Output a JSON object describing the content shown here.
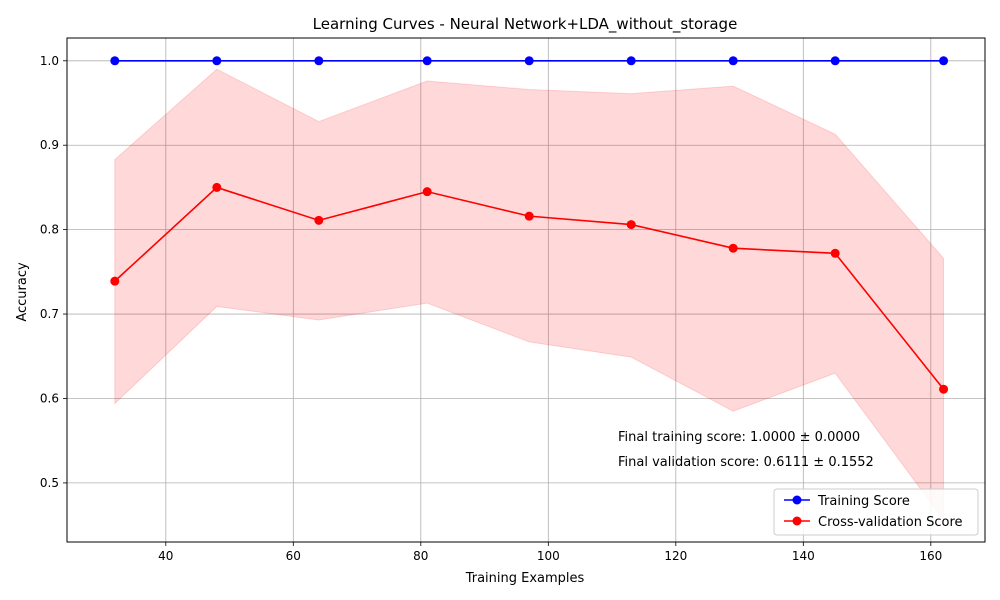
{
  "chart_data": {
    "type": "line",
    "title": "Learning Curves - Neural Network+LDA_without_storage",
    "xlabel": "Training Examples",
    "ylabel": "Accuracy",
    "x": [
      32,
      48,
      64,
      81,
      97,
      113,
      129,
      145,
      162
    ],
    "series": [
      {
        "name": "Training Score",
        "color": "#0000ff",
        "values": [
          1.0,
          1.0,
          1.0,
          1.0,
          1.0,
          1.0,
          1.0,
          1.0,
          1.0
        ],
        "band_lower": [
          1.0,
          1.0,
          1.0,
          1.0,
          1.0,
          1.0,
          1.0,
          1.0,
          1.0
        ],
        "band_upper": [
          1.0,
          1.0,
          1.0,
          1.0,
          1.0,
          1.0,
          1.0,
          1.0,
          1.0
        ]
      },
      {
        "name": "Cross-validation Score",
        "color": "#ff0000",
        "values": [
          0.739,
          0.85,
          0.811,
          0.845,
          0.816,
          0.806,
          0.778,
          0.772,
          0.611
        ],
        "band_lower": [
          0.594,
          0.709,
          0.693,
          0.713,
          0.667,
          0.649,
          0.585,
          0.63,
          0.456
        ],
        "band_upper": [
          0.883,
          0.99,
          0.928,
          0.976,
          0.966,
          0.961,
          0.97,
          0.913,
          0.766
        ]
      }
    ],
    "xlim": [
      24.5,
      168.5
    ],
    "ylim": [
      0.43,
      1.027
    ],
    "xticks": [
      40,
      60,
      80,
      100,
      120,
      140,
      160
    ],
    "yticks": [
      0.5,
      0.6,
      0.7,
      0.8,
      0.9,
      1.0
    ],
    "grid": true,
    "legend_position": "lower-right",
    "annotations": [
      "Final training score: 1.0000 ± 0.0000",
      "Final validation score: 0.6111 ± 0.1552"
    ]
  }
}
